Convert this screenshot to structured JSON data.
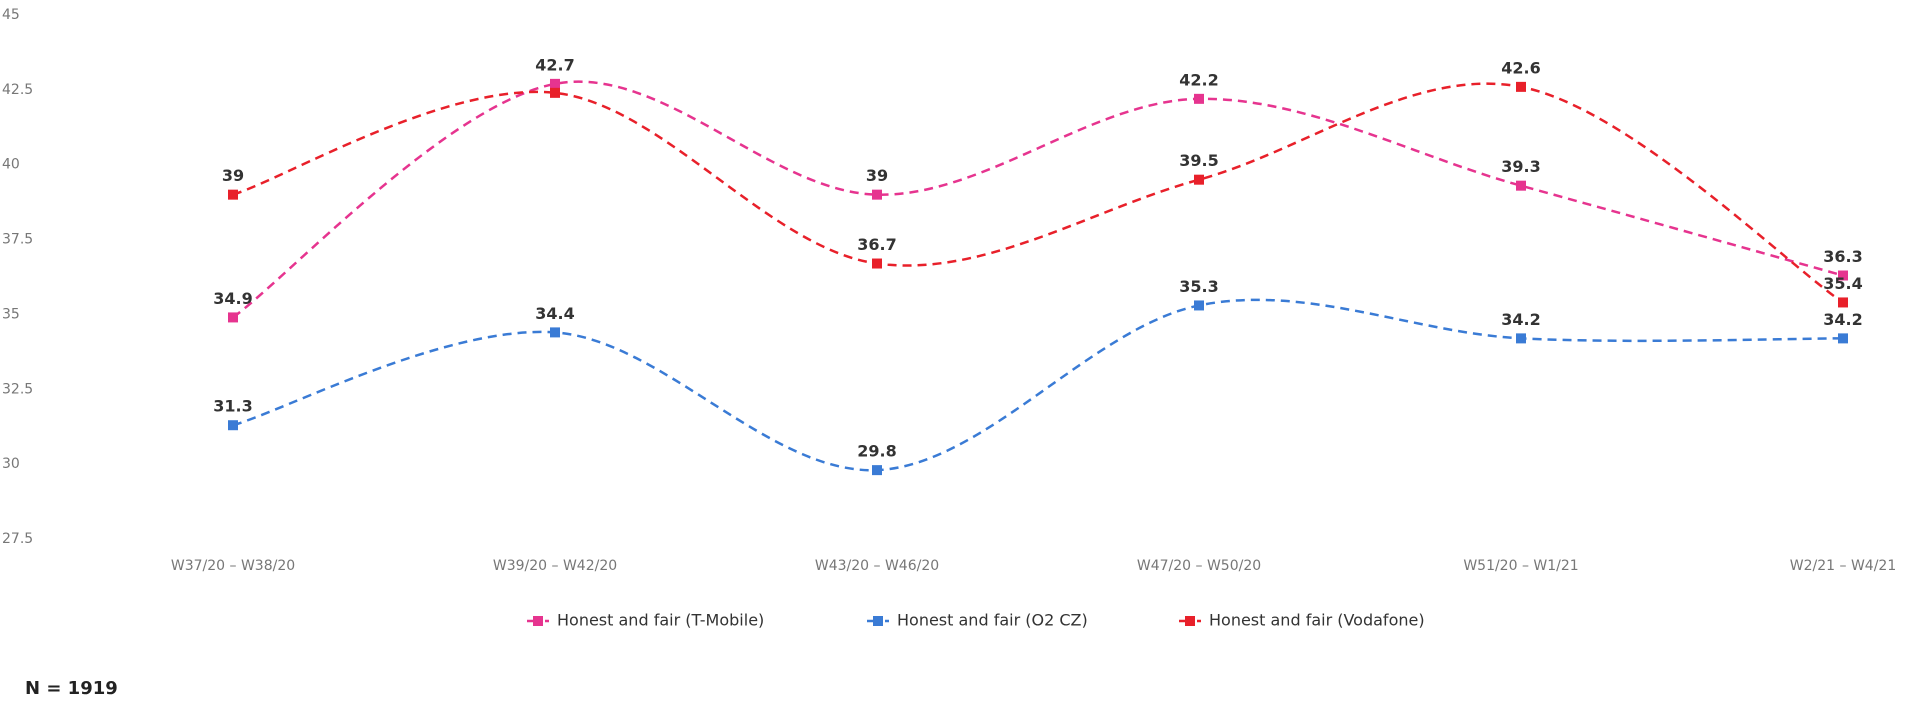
{
  "chart_data": {
    "type": "line",
    "categories": [
      "W37/20 – W38/20",
      "W39/20 – W42/20",
      "W43/20 – W46/20",
      "W47/20 – W50/20",
      "W51/20 – W1/21",
      "W2/21 – W4/21"
    ],
    "series": [
      {
        "name": "Honest and fair (T-Mobile)",
        "color": "#e6348f",
        "values": [
          34.9,
          42.7,
          39,
          42.2,
          39.3,
          36.3
        ],
        "value_labels": [
          "34.9",
          "42.7",
          "39",
          "42.2",
          "39.3",
          "36.3"
        ]
      },
      {
        "name": "Honest and fair (O2 CZ)",
        "color": "#3a7bd5",
        "values": [
          31.3,
          34.4,
          29.8,
          35.3,
          34.2,
          34.2
        ],
        "value_labels": [
          "31.3",
          "34.4",
          "29.8",
          "35.3",
          "34.2",
          "34.2"
        ]
      },
      {
        "name": "Honest and fair (Vodafone)",
        "color": "#e8202a",
        "values": [
          39,
          42.4,
          36.7,
          39.5,
          42.6,
          35.4
        ],
        "value_labels": [
          "39",
          null,
          "36.7",
          "39.5",
          "42.6",
          "35.4"
        ]
      }
    ],
    "ylim": [
      27.5,
      45
    ],
    "yticks": [
      27.5,
      30,
      32.5,
      35,
      37.5,
      40,
      42.5,
      45
    ],
    "footnote": "N = 1919"
  }
}
